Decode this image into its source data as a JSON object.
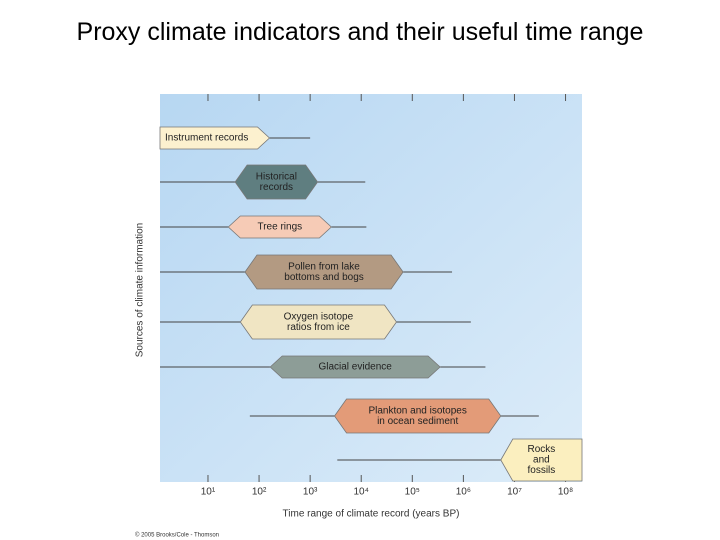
{
  "title": "Proxy climate indicators and their useful time range",
  "chart_data": {
    "type": "range",
    "categories": [
      [
        "Instrument records"
      ],
      [
        "Historical",
        "records"
      ],
      [
        "Tree rings"
      ],
      [
        "Pollen from lake",
        "bottoms and bogs"
      ],
      [
        "Oxygen isotope",
        "ratios from ice"
      ],
      [
        "Glacial evidence"
      ],
      [
        "Plankton and isotopes",
        "in ocean sediment"
      ],
      [
        "Rocks",
        "and",
        "fossils"
      ]
    ],
    "ranges": [
      [
        1.15,
        160
      ],
      [
        34,
        1400
      ],
      [
        25,
        2600
      ],
      [
        53,
        66000
      ],
      [
        43,
        49000
      ],
      [
        165,
        350000
      ],
      [
        3000,
        5400000
      ],
      [
        5400000,
        210000000
      ]
    ],
    "extents": [
      [
        1.15,
        1000
      ],
      [
        1.15,
        12000
      ],
      [
        1.15,
        12600
      ],
      [
        1.15,
        600000
      ],
      [
        1.15,
        1400000
      ],
      [
        1.15,
        2700000
      ],
      [
        66,
        30000000
      ],
      [
        3400,
        5400000
      ]
    ],
    "colors": [
      "#fcf1cf",
      "#5f7e80",
      "#f6cbb6",
      "#b39a82",
      "#f0e5c3",
      "#8d9d97",
      "#e39b78",
      "#fbefbf"
    ],
    "xscale": "log",
    "xlim": [
      1.15,
      210000000
    ],
    "xticks": [
      {
        "value": 10,
        "label": "10¹"
      },
      {
        "value": 100,
        "label": "10²"
      },
      {
        "value": 1000,
        "label": "10³"
      },
      {
        "value": 10000,
        "label": "10⁴"
      },
      {
        "value": 100000,
        "label": "10⁵"
      },
      {
        "value": 1000000,
        "label": "10⁶"
      },
      {
        "value": 10000000,
        "label": "10⁷"
      },
      {
        "value": 100000000,
        "label": "10⁸"
      }
    ],
    "xlabel": "Time range of climate record (years BP)",
    "ylabel": "Sources of climate information",
    "credit": "© 2005 Brooks/Cole - Thomson"
  }
}
